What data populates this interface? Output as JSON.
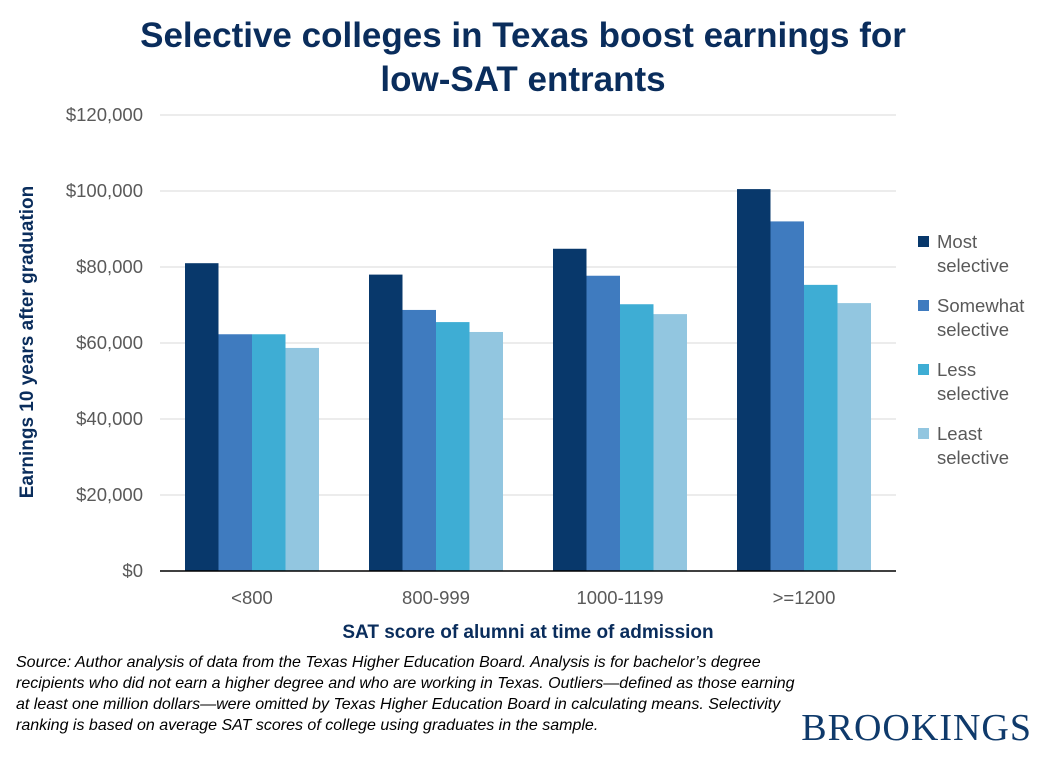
{
  "title_lines": [
    "Selective colleges in Texas boost earnings for",
    "low-SAT entrants"
  ],
  "source": "Source: Author analysis of data from the Texas Higher Education Board. Analysis is for bachelor’s degree recipients who did not earn a higher degree and who are working in Texas. Outliers—defined as those earning at least one million dollars—were omitted by Texas Higher Education Board in calculating means. Selectivity ranking is based on average SAT scores of college using graduates in the sample.",
  "brand": "BROOKINGS",
  "chart_data": {
    "type": "bar",
    "title": "Selective colleges in Texas boost earnings for low-SAT entrants",
    "xlabel": "SAT score of alumni at time of admission",
    "ylabel": "Earnings 10 years after graduation",
    "categories": [
      "<800",
      "800-999",
      "1000-1199",
      ">=1200"
    ],
    "ylim": [
      0,
      120000
    ],
    "yticks": [
      "$0",
      "$20,000",
      "$40,000",
      "$60,000",
      "$80,000",
      "$100,000",
      "$120,000"
    ],
    "grid": true,
    "legend_position": "right",
    "series": [
      {
        "name": "Most selective",
        "label": "Most\nselective",
        "color": "#08386b",
        "values": [
          81000,
          78000,
          84800,
          100500
        ]
      },
      {
        "name": "Somewhat selective",
        "label": "Somewhat\nselective",
        "color": "#3f7bbf",
        "values": [
          62300,
          68700,
          77700,
          92000
        ]
      },
      {
        "name": "Less selective",
        "label": "Less\nselective",
        "color": "#3eadd4",
        "values": [
          62300,
          65500,
          70200,
          75300
        ]
      },
      {
        "name": "Least selective",
        "label": "Least\nselective",
        "color": "#92c6e0",
        "values": [
          58700,
          62900,
          67600,
          70500
        ]
      }
    ]
  }
}
